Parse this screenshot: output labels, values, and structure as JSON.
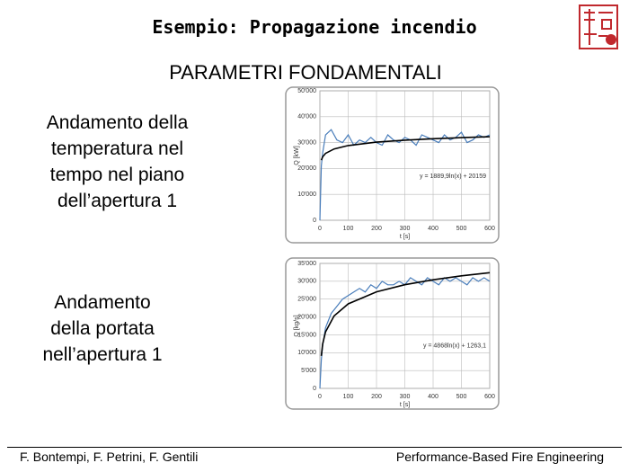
{
  "header": {
    "title": "Esempio: Propagazione incendio",
    "subtitle": "PARAMETRI FONDAMENTALI"
  },
  "left_texts": [
    [
      "Andamento della",
      "temperatura nel",
      "tempo nel piano",
      "dell’apertura 1"
    ],
    [
      "Andamento",
      "della portata",
      "nell’apertura 1"
    ]
  ],
  "footer": {
    "left": "F. Bontempi, F. Petrini, F. Gentili",
    "right": "Performance-Based Fire Engineering"
  },
  "chart_data": [
    {
      "type": "line",
      "x_label": "t [s]",
      "y_label": "Q [kW]",
      "equation": "y = 1889,9ln(x) + 20159",
      "xlim": [
        0,
        600
      ],
      "xticks": [
        0,
        100,
        200,
        300,
        400,
        500,
        600
      ],
      "ylim": [
        0,
        50000
      ],
      "yticks": [
        0,
        {
          "value": 10000,
          "label": "10'000"
        },
        {
          "value": 20000,
          "label": "20'000"
        },
        {
          "value": 30000,
          "label": "30'000"
        },
        {
          "value": 40000,
          "label": "40'000"
        },
        {
          "value": 50000,
          "label": "50'000"
        }
      ],
      "grid": true,
      "series": [
        {
          "color": "#4a7ebb",
          "x": [
            0,
            5,
            10,
            20,
            40,
            60,
            80,
            100,
            120,
            140,
            160,
            180,
            200,
            220,
            240,
            260,
            280,
            300,
            320,
            340,
            360,
            380,
            400,
            420,
            440,
            460,
            480,
            500,
            520,
            540,
            560,
            580,
            600
          ],
          "values": [
            0,
            21000,
            26000,
            33000,
            35000,
            31000,
            30000,
            33000,
            29000,
            31000,
            30000,
            32000,
            30000,
            29000,
            33000,
            31000,
            30000,
            32000,
            31000,
            29000,
            33000,
            32000,
            31000,
            30000,
            33000,
            31000,
            32000,
            34000,
            30000,
            31000,
            33000,
            32000,
            33000
          ]
        },
        {
          "color": "#000000",
          "x": [
            5,
            10,
            20,
            50,
            100,
            200,
            300,
            400,
            500,
            600
          ],
          "values": [
            23201,
            24511,
            25821,
            27552,
            28862,
            30172,
            30939,
            31482,
            31905,
            32249
          ]
        }
      ]
    },
    {
      "type": "line",
      "x_label": "t [s]",
      "y_label": "Q [kg/s]",
      "equation": "y = 4868ln(x) + 1263,1",
      "xlim": [
        0,
        600
      ],
      "xticks": [
        0,
        100,
        200,
        300,
        400,
        500,
        600
      ],
      "ylim": [
        0,
        35000
      ],
      "yticks": [
        0,
        {
          "value": 5000,
          "label": "5'000"
        },
        {
          "value": 10000,
          "label": "10'000"
        },
        {
          "value": 15000,
          "label": "15'000"
        },
        {
          "value": 20000,
          "label": "20'000"
        },
        {
          "value": 25000,
          "label": "25'000"
        },
        {
          "value": 30000,
          "label": "30'000"
        },
        {
          "value": 35000,
          "label": "35'000"
        }
      ],
      "grid": true,
      "series": [
        {
          "color": "#4a7ebb",
          "x": [
            0,
            5,
            10,
            20,
            40,
            60,
            80,
            100,
            120,
            140,
            160,
            180,
            200,
            220,
            240,
            260,
            280,
            300,
            320,
            340,
            360,
            380,
            400,
            420,
            440,
            460,
            480,
            500,
            520,
            540,
            560,
            580,
            600
          ],
          "values": [
            0,
            8000,
            12000,
            17000,
            21000,
            23000,
            25000,
            26000,
            27000,
            28000,
            27000,
            29000,
            28000,
            30000,
            29000,
            29000,
            30000,
            29000,
            31000,
            30000,
            29000,
            31000,
            30000,
            29000,
            31000,
            30000,
            31000,
            30000,
            29000,
            31000,
            30000,
            31000,
            30000
          ]
        },
        {
          "color": "#000000",
          "x": [
            5,
            10,
            20,
            50,
            100,
            200,
            300,
            400,
            500,
            600
          ],
          "values": [
            9098,
            12472,
            15846,
            20306,
            23681,
            27055,
            29029,
            30427,
            31517,
            32404
          ]
        }
      ]
    }
  ]
}
